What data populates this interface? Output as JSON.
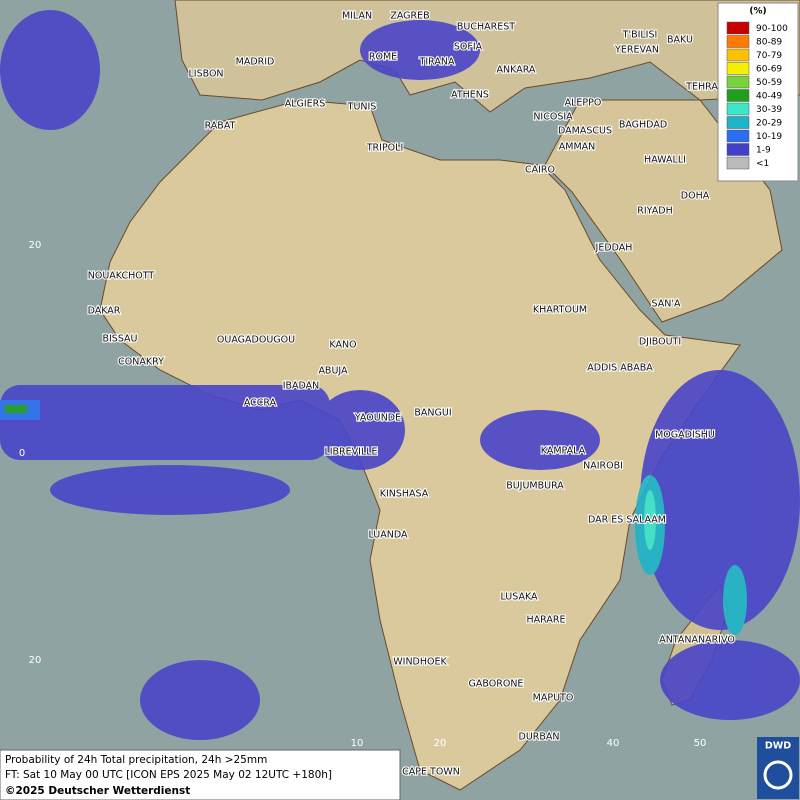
{
  "map": {
    "cities": [
      "MILAN",
      "ZAGREB",
      "BUCHAREST",
      "T'BILISI",
      "BAKU",
      "MADRID",
      "ROME",
      "SOFIA",
      "YEREVAN",
      "LISBON",
      "TIRANA",
      "ANKARA",
      "TEHRA",
      "ALGIERS",
      "TUNIS",
      "ATHENS",
      "ALEPPO",
      "RABAT",
      "NICOSIA",
      "BAGHDAD",
      "DAMASCUS",
      "TRIPOLI",
      "AMMAN",
      "HAWALLI",
      "CAIRO",
      "DOHA",
      "RIYADH",
      "JEDDAH",
      "NOUAKCHOTT",
      "SAN'A",
      "DAKAR",
      "KHARTOUM",
      "BISSAU",
      "OUAGADOUGOU",
      "KANO",
      "DJIBOUTI",
      "CONAKRY",
      "ABUJA",
      "ADDIS ABABA",
      "IBADAN",
      "ACCRA",
      "YAOUNDE",
      "BANGUI",
      "MOGADISHU",
      "LIBREVILLE",
      "KAMPALA",
      "NAIROBI",
      "KINSHASA",
      "BUJUMBURA",
      "DAR ES SALAAM",
      "LUANDA",
      "LUSAKA",
      "HARARE",
      "ANTANANARIVO",
      "WINDHOEK",
      "GABORONE",
      "MAPUTO",
      "DURBAN",
      "CAPE TOWN"
    ],
    "lat_labels": [
      20,
      0,
      20
    ],
    "lon_labels": [
      10,
      20,
      40,
      50
    ]
  },
  "legend": {
    "title": "(%)",
    "items": [
      {
        "label": "90-100",
        "color": "#c80000"
      },
      {
        "label": "80-89",
        "color": "#ff7a00"
      },
      {
        "label": "70-79",
        "color": "#ffc000"
      },
      {
        "label": "60-69",
        "color": "#f5f000"
      },
      {
        "label": "50-59",
        "color": "#78d23c"
      },
      {
        "label": "40-49",
        "color": "#1ea01e"
      },
      {
        "label": "30-39",
        "color": "#3ce6c8"
      },
      {
        "label": "20-29",
        "color": "#1eb4c8"
      },
      {
        "label": "10-19",
        "color": "#2c6ef0"
      },
      {
        "label": "1-9",
        "color": "#4040c8"
      },
      {
        "label": "<1",
        "color": "#bbbbbb"
      }
    ]
  },
  "caption": {
    "line1": "Probability of 24h Total precipitation, 24h >25mm",
    "line2": "FT: Sat 10 May 00 UTC [ICON EPS 2025 May 02 12UTC +180h]",
    "credit": "©2025 Deutscher Wetterdienst"
  },
  "logo": "DWD"
}
